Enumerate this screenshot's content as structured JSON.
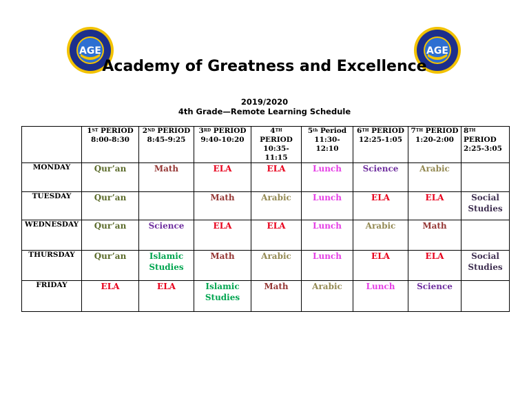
{
  "header": {
    "title": "Academy of Greatness and Excellence",
    "year": "2019/2020",
    "subtitle": "4th Grade—Remote Learning Schedule",
    "logo_text": "AGE"
  },
  "periods": [
    {
      "num": "1",
      "sup": "ST",
      "word": "PERIOD",
      "time": "8:00-8:30"
    },
    {
      "num": "2",
      "sup": "ND",
      "word": "PERIOD",
      "time": "8:45-9:25"
    },
    {
      "num": "3",
      "sup": "RD",
      "word": "PERIOD",
      "time": "9:40-10:20"
    },
    {
      "num": "4",
      "sup": "TH",
      "word": "PERIOD",
      "time": "10:35-11:15"
    },
    {
      "num": "5",
      "sup": "th",
      "word": "Period",
      "time": "11:30-12:10"
    },
    {
      "num": "6",
      "sup": "TH",
      "word": "PERIOD",
      "time": "12:25-1:05"
    },
    {
      "num": "7",
      "sup": "TH",
      "word": "PERIOD",
      "time": "1:20-2:00"
    },
    {
      "num": "8",
      "sup": "TH",
      "word": "PERIOD",
      "time": "2:25-3:05"
    }
  ],
  "days": [
    {
      "name": "MONDAY",
      "cells": [
        "Qur’an",
        "Math",
        "ELA",
        "ELA",
        "Lunch",
        "Science",
        "Arabic",
        ""
      ]
    },
    {
      "name": "TUESDAY",
      "cells": [
        "Qur’an",
        "",
        "Math",
        "Arabic",
        "Lunch",
        "ELA",
        "ELA",
        "Social Studies"
      ]
    },
    {
      "name": "WEDNESDAY",
      "cells": [
        "Qur’an",
        "Science",
        "ELA",
        "ELA",
        "Lunch",
        "Arabic",
        "Math",
        ""
      ]
    },
    {
      "name": "THURSDAY",
      "cells": [
        "Qur’an",
        "Islamic Studies",
        "Math",
        "Arabic",
        "Lunch",
        "ELA",
        "ELA",
        "Social Studies"
      ]
    },
    {
      "name": "FRIDAY",
      "cells": [
        "ELA",
        "ELA",
        "Islamic Studies",
        "Math",
        "Arabic",
        "Lunch",
        "Science",
        ""
      ]
    }
  ],
  "subject_colors": {
    "Qur’an": "#5b6b2a",
    "Math": "#953735",
    "ELA": "#e8001c",
    "Arabic": "#948a54",
    "Lunch": "#e640e6",
    "Science": "#7030a0",
    "Social Studies": "#403152",
    "Islamic Studies": "#00a550"
  }
}
